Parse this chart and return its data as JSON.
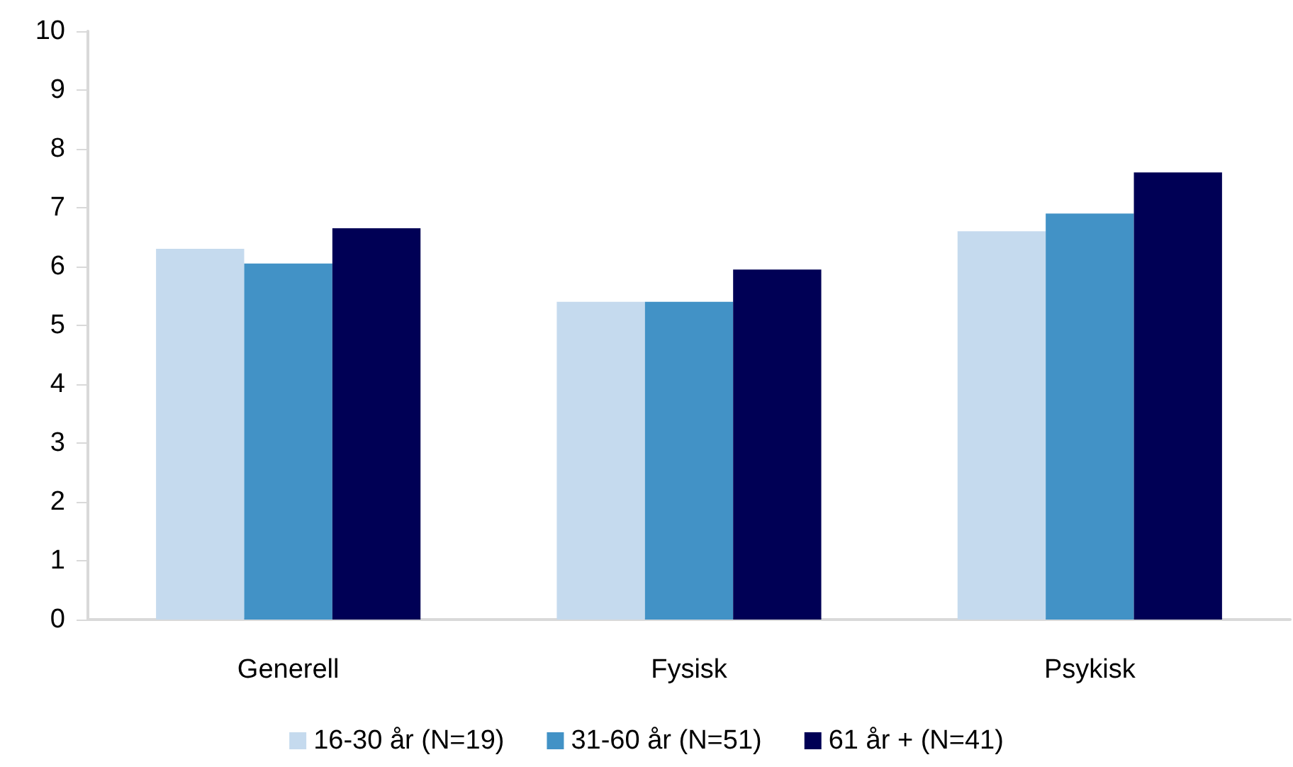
{
  "chart_data": {
    "type": "bar",
    "categories": [
      "Generell",
      "Fysisk",
      "Psykisk"
    ],
    "series": [
      {
        "name": "16-30 år (N=19)",
        "color": "#c5daee",
        "values": [
          6.3,
          5.4,
          6.6
        ]
      },
      {
        "name": "31-60 år (N=51)",
        "color": "#4292c6",
        "values": [
          6.05,
          5.4,
          6.9
        ]
      },
      {
        "name": "61 år + (N=41)",
        "color": "#000055",
        "values": [
          6.65,
          5.95,
          7.6
        ]
      }
    ],
    "ylim": [
      0,
      10
    ],
    "yticks": [
      0,
      1,
      2,
      3,
      4,
      5,
      6,
      7,
      8,
      9,
      10
    ],
    "grid": false,
    "legend": "bottom"
  }
}
